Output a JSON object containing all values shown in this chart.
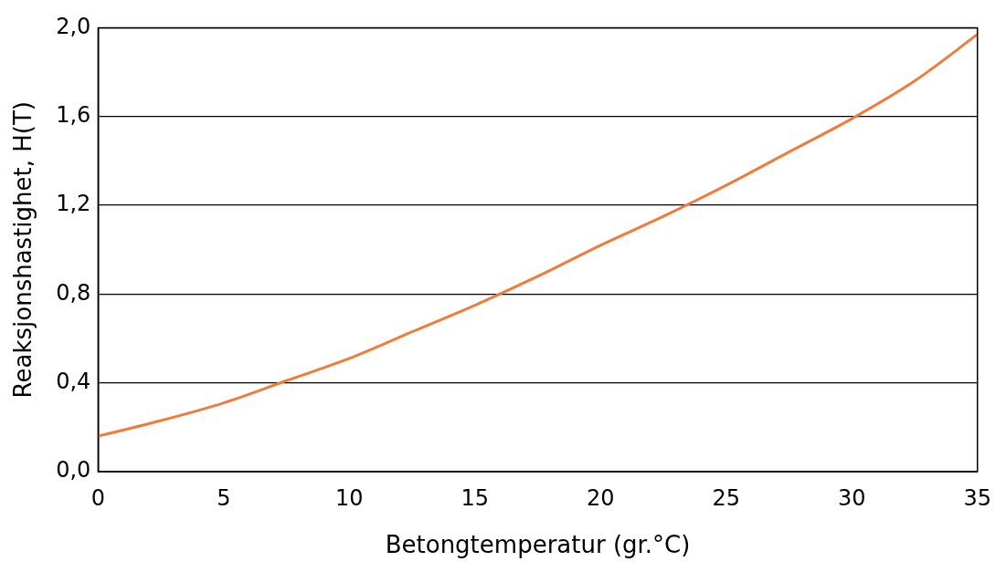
{
  "chart_data": {
    "type": "line",
    "xlabel": "Betongtemperatur (gr.°C)",
    "ylabel": "Reaksjonshastighet, H(T)",
    "x": [
      0,
      2.5,
      5,
      7.5,
      10,
      12.5,
      15,
      17.5,
      20,
      22.5,
      25,
      27.5,
      30,
      32.5,
      35
    ],
    "series": [
      {
        "color": "#f07c3c",
        "values": [
          0.16,
          0.23,
          0.31,
          0.41,
          0.51,
          0.63,
          0.75,
          0.88,
          1.02,
          1.15,
          1.29,
          1.44,
          1.59,
          1.76,
          1.97
        ]
      }
    ],
    "xlim": [
      0,
      35
    ],
    "xticks": [
      0,
      5,
      10,
      15,
      20,
      25,
      30,
      35
    ],
    "ylim": [
      0,
      2
    ],
    "yticks": [
      {
        "value": 0,
        "label": "0,0"
      },
      {
        "value": 0.4,
        "label": "0,4"
      },
      {
        "value": 0.8,
        "label": "0,8"
      },
      {
        "value": 1.2,
        "label": "1,2"
      },
      {
        "value": 1.6,
        "label": "1,6"
      },
      {
        "value": 2,
        "label": "2,0"
      }
    ],
    "grid": "y",
    "legend": false,
    "marker": "none",
    "line_style": "solid"
  }
}
